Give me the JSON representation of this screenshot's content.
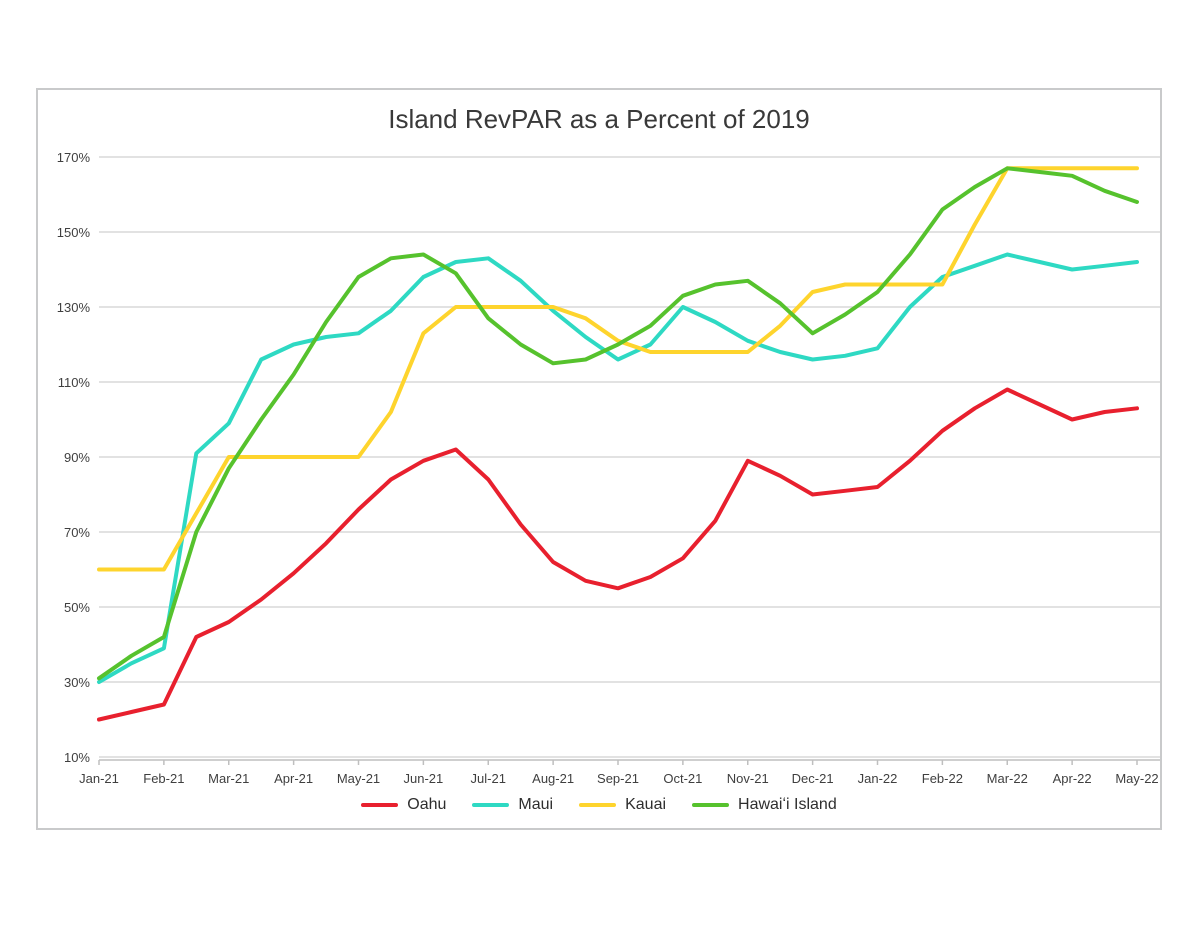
{
  "chart_box": {
    "title": "Island RevPAR as a Percent of 2019"
  },
  "chart_data": {
    "type": "line",
    "title": "Island RevPAR as a Percent of 2019",
    "xlabel": "",
    "ylabel": "",
    "x_tick_labels": [
      "Jan-21",
      "Feb-21",
      "Mar-21",
      "Apr-21",
      "May-21",
      "Jun-21",
      "Jul-21",
      "Aug-21",
      "Sep-21",
      "Oct-21",
      "Nov-21",
      "Dec-21",
      "Jan-22",
      "Feb-22",
      "Mar-22",
      "Apr-22",
      "May-22"
    ],
    "points_per_label": 2,
    "x_resolution": "semi-monthly",
    "y_ticks": [
      "10%",
      "30%",
      "50%",
      "70%",
      "90%",
      "110%",
      "130%",
      "150%",
      "170%"
    ],
    "ylim": [
      10,
      170
    ],
    "y_step": 20,
    "grid": "horizontal",
    "legend_position": "bottom",
    "series": [
      {
        "name": "Oahu",
        "color": "#e8202e",
        "values": [
          20,
          22,
          24,
          42,
          46,
          52,
          59,
          67,
          76,
          84,
          89,
          92,
          84,
          72,
          62,
          57,
          55,
          58,
          63,
          73,
          89,
          85,
          80,
          81,
          82,
          89,
          97,
          103,
          108,
          104,
          100,
          102,
          103
        ]
      },
      {
        "name": "Maui",
        "color": "#2ed9c3",
        "values": [
          30,
          35,
          39,
          91,
          99,
          116,
          120,
          122,
          123,
          129,
          138,
          142,
          143,
          137,
          129,
          122,
          116,
          120,
          130,
          126,
          121,
          118,
          116,
          117,
          119,
          130,
          138,
          141,
          144,
          142,
          140,
          141,
          142
        ]
      },
      {
        "name": "Kauai",
        "color": "#fed42d",
        "values": [
          60,
          60,
          60,
          75,
          90,
          90,
          90,
          90,
          90,
          102,
          123,
          130,
          130,
          130,
          130,
          127,
          121,
          118,
          118,
          118,
          118,
          125,
          134,
          136,
          136,
          136,
          136,
          152,
          167,
          167,
          167,
          167,
          167
        ]
      },
      {
        "name": "Hawaiʻi Island",
        "color": "#56c22d",
        "values": [
          31,
          37,
          42,
          70,
          87,
          100,
          112,
          126,
          138,
          143,
          144,
          139,
          127,
          120,
          115,
          116,
          120,
          125,
          133,
          136,
          137,
          131,
          123,
          128,
          134,
          144,
          156,
          162,
          167,
          166,
          165,
          161,
          158
        ]
      }
    ]
  },
  "colors": {
    "gridline": "#d9d9d9",
    "axis": "#bfbfbf",
    "tick_text": "#3f3f3f",
    "box_border": "#c9cacb"
  }
}
